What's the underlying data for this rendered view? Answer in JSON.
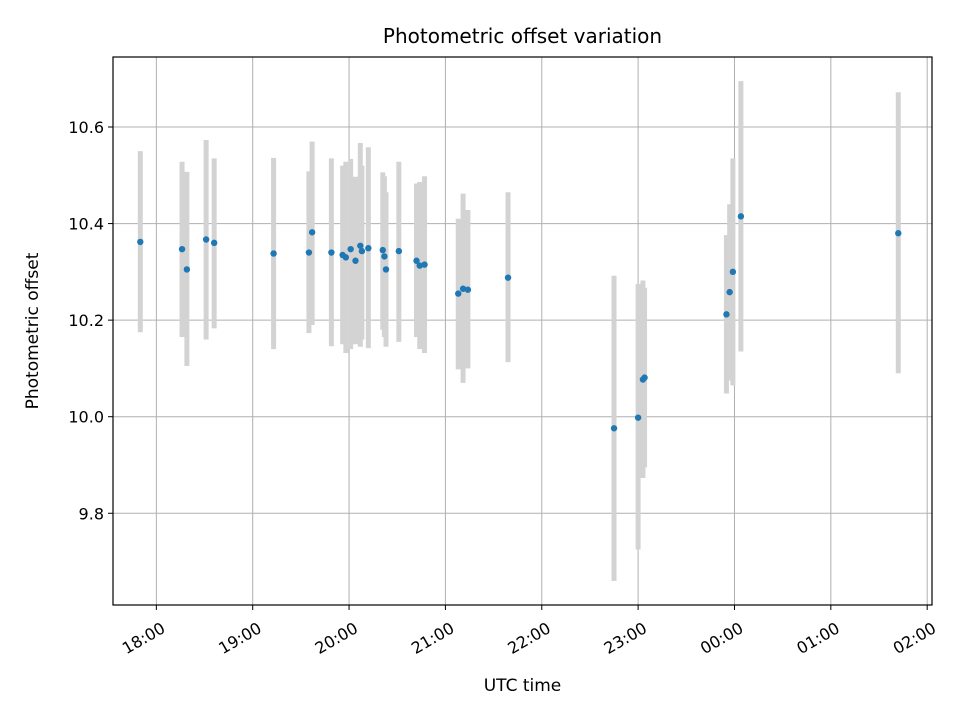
{
  "chart_data": {
    "type": "scatter",
    "title": "Photometric offset variation",
    "xlabel": "UTC time",
    "ylabel": "Photometric offset",
    "x_axis": "time",
    "xlim": [
      "17:33",
      "02:03"
    ],
    "ylim": [
      9.61,
      10.745
    ],
    "x_ticks": [
      "18:00",
      "19:00",
      "20:00",
      "21:00",
      "22:00",
      "23:00",
      "00:00",
      "01:00",
      "02:00"
    ],
    "y_ticks": [
      9.8,
      10.0,
      10.2,
      10.4,
      10.6
    ],
    "grid": true,
    "point_color": "#1f77b4",
    "errorbar_color": "#d3d3d3",
    "points": [
      {
        "time": "17:50",
        "y": 10.362,
        "err_low": 10.175,
        "err_high": 10.55
      },
      {
        "time": "18:16",
        "y": 10.347,
        "err_low": 10.165,
        "err_high": 10.528
      },
      {
        "time": "18:19",
        "y": 10.305,
        "err_low": 10.105,
        "err_high": 10.507
      },
      {
        "time": "18:31",
        "y": 10.367,
        "err_low": 10.16,
        "err_high": 10.573
      },
      {
        "time": "18:36",
        "y": 10.36,
        "err_low": 10.183,
        "err_high": 10.535
      },
      {
        "time": "19:13",
        "y": 10.338,
        "err_low": 10.14,
        "err_high": 10.536
      },
      {
        "time": "19:35",
        "y": 10.34,
        "err_low": 10.173,
        "err_high": 10.508
      },
      {
        "time": "19:37",
        "y": 10.382,
        "err_low": 10.19,
        "err_high": 10.57
      },
      {
        "time": "19:49",
        "y": 10.34,
        "err_low": 10.146,
        "err_high": 10.535
      },
      {
        "time": "19:56",
        "y": 10.335,
        "err_low": 10.15,
        "err_high": 10.52
      },
      {
        "time": "19:58",
        "y": 10.33,
        "err_low": 10.132,
        "err_high": 10.528
      },
      {
        "time": "20:01",
        "y": 10.347,
        "err_low": 10.14,
        "err_high": 10.534
      },
      {
        "time": "20:04",
        "y": 10.323,
        "err_low": 10.15,
        "err_high": 10.497
      },
      {
        "time": "20:07",
        "y": 10.354,
        "err_low": 10.145,
        "err_high": 10.567
      },
      {
        "time": "20:08",
        "y": 10.343,
        "err_low": 10.16,
        "err_high": 10.52
      },
      {
        "time": "20:12",
        "y": 10.349,
        "err_low": 10.142,
        "err_high": 10.558
      },
      {
        "time": "20:21",
        "y": 10.345,
        "err_low": 10.18,
        "err_high": 10.506
      },
      {
        "time": "20:22",
        "y": 10.332,
        "err_low": 10.165,
        "err_high": 10.498
      },
      {
        "time": "20:23",
        "y": 10.305,
        "err_low": 10.145,
        "err_high": 10.465
      },
      {
        "time": "20:31",
        "y": 10.343,
        "err_low": 10.155,
        "err_high": 10.528
      },
      {
        "time": "20:42",
        "y": 10.323,
        "err_low": 10.165,
        "err_high": 10.483
      },
      {
        "time": "20:44",
        "y": 10.313,
        "err_low": 10.14,
        "err_high": 10.486
      },
      {
        "time": "20:47",
        "y": 10.315,
        "err_low": 10.132,
        "err_high": 10.498
      },
      {
        "time": "21:08",
        "y": 10.255,
        "err_low": 10.098,
        "err_high": 10.41
      },
      {
        "time": "21:11",
        "y": 10.265,
        "err_low": 10.07,
        "err_high": 10.462
      },
      {
        "time": "21:14",
        "y": 10.263,
        "err_low": 10.1,
        "err_high": 10.428
      },
      {
        "time": "21:39",
        "y": 10.288,
        "err_low": 10.113,
        "err_high": 10.465
      },
      {
        "time": "22:45",
        "y": 9.976,
        "err_low": 9.66,
        "err_high": 10.292
      },
      {
        "time": "23:00",
        "y": 9.998,
        "err_low": 9.725,
        "err_high": 10.275
      },
      {
        "time": "23:03",
        "y": 10.077,
        "err_low": 9.873,
        "err_high": 10.282
      },
      {
        "time": "23:04",
        "y": 10.081,
        "err_low": 9.895,
        "err_high": 10.267
      },
      {
        "time": "23:55",
        "y": 10.212,
        "err_low": 10.048,
        "err_high": 10.376
      },
      {
        "time": "23:57",
        "y": 10.258,
        "err_low": 10.075,
        "err_high": 10.44
      },
      {
        "time": "23:59",
        "y": 10.3,
        "err_low": 10.065,
        "err_high": 10.535
      },
      {
        "time": "00:04",
        "y": 10.415,
        "err_low": 10.135,
        "err_high": 10.695
      },
      {
        "time": "01:42",
        "y": 10.38,
        "err_low": 10.09,
        "err_high": 10.672
      }
    ]
  }
}
